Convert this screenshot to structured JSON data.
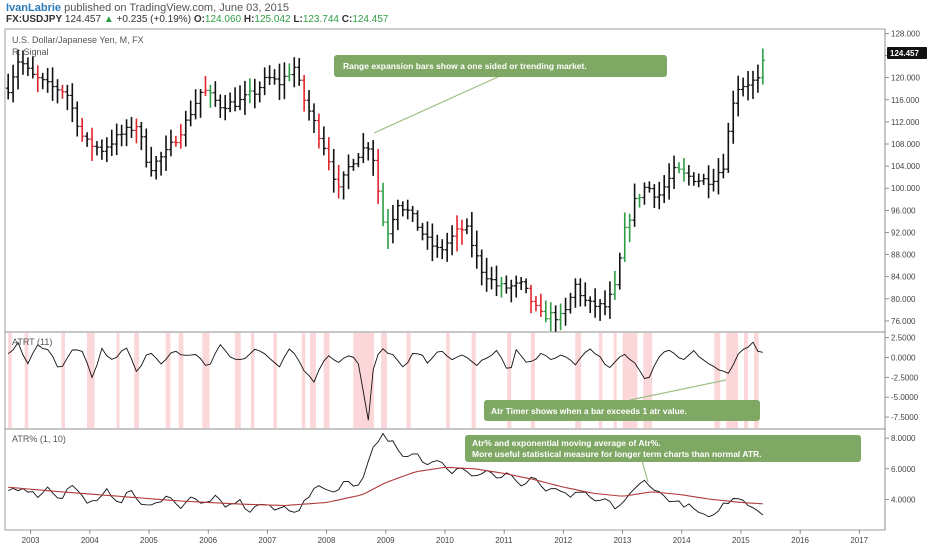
{
  "header": {
    "author": "IvanLabrie",
    "published_text": "published on TradingView.com, June 03, 2015",
    "symbol": "FX:USDJPY",
    "last": "124.457",
    "change": "+0.235 (+0.19%)",
    "open_label": "O:",
    "open": "124.060",
    "high_label": "H:",
    "high": "125.042",
    "low_label": "L:",
    "low": "123.744",
    "close_label": "C:",
    "close": "124.457"
  },
  "colors": {
    "up": "#2e9e45",
    "down": "#e0252a",
    "neutral": "#111111",
    "highlight": "#fbd7d9",
    "note_bg": "#7fa864",
    "ema": "#b03a3a"
  },
  "icons": {
    "change_arrow": "triangle-up-icon"
  },
  "chart_data": [
    {
      "type": "candlestick",
      "title": "U.S. Dollar/Japanese Yen, M, FX",
      "subtitle": "R: Signal",
      "ylim": [
        74.0,
        128.8
      ],
      "yticks": [
        "128.000",
        "124.000",
        "120.000",
        "116.000",
        "112.000",
        "108.000",
        "104.000",
        "100.000",
        "96.000",
        "92.000",
        "88.000",
        "84.000",
        "80.000",
        "76.000"
      ],
      "last_price_label": "124.457",
      "xlim": [
        2002.6,
        2017.4
      ],
      "xticks": [
        "2003",
        "2004",
        "2005",
        "2006",
        "2007",
        "2008",
        "2009",
        "2010",
        "2011",
        "2012",
        "2013",
        "2014",
        "2015",
        "2016",
        "2017"
      ],
      "annotation": "Range expansion bars show a one sided or trending market.",
      "anchors": [
        [
          2002.6,
          117.5
        ],
        [
          2002.8,
          123.5
        ],
        [
          2003.0,
          120.5
        ],
        [
          2003.3,
          118.5
        ],
        [
          2003.6,
          117.5
        ],
        [
          2003.9,
          108.5
        ],
        [
          2004.2,
          107.0
        ],
        [
          2004.5,
          109.5
        ],
        [
          2004.8,
          111.5
        ],
        [
          2005.0,
          103.5
        ],
        [
          2005.3,
          106.5
        ],
        [
          2005.6,
          111.5
        ],
        [
          2005.9,
          118.0
        ],
        [
          2006.2,
          115.0
        ],
        [
          2006.5,
          115.5
        ],
        [
          2006.8,
          117.5
        ],
        [
          2007.0,
          120.0
        ],
        [
          2007.2,
          119.0
        ],
        [
          2007.45,
          122.0
        ],
        [
          2007.6,
          116.5
        ],
        [
          2007.8,
          111.5
        ],
        [
          2008.0,
          106.5
        ],
        [
          2008.2,
          99.5
        ],
        [
          2008.4,
          104.5
        ],
        [
          2008.6,
          107.0
        ],
        [
          2008.75,
          108.0
        ],
        [
          2008.9,
          97.5
        ],
        [
          2009.0,
          91.0
        ],
        [
          2009.2,
          97.5
        ],
        [
          2009.4,
          95.5
        ],
        [
          2009.7,
          90.5
        ],
        [
          2009.9,
          88.5
        ],
        [
          2010.2,
          92.0
        ],
        [
          2010.35,
          93.0
        ],
        [
          2010.6,
          85.5
        ],
        [
          2010.85,
          82.5
        ],
        [
          2011.0,
          82.0
        ],
        [
          2011.3,
          82.5
        ],
        [
          2011.6,
          77.0
        ],
        [
          2011.8,
          77.0
        ],
        [
          2012.0,
          76.5
        ],
        [
          2012.2,
          82.5
        ],
        [
          2012.4,
          79.0
        ],
        [
          2012.7,
          78.5
        ],
        [
          2012.9,
          82.5
        ],
        [
          2013.0,
          91.0
        ],
        [
          2013.2,
          97.5
        ],
        [
          2013.4,
          100.5
        ],
        [
          2013.6,
          98.5
        ],
        [
          2013.9,
          103.5
        ],
        [
          2014.0,
          102.5
        ],
        [
          2014.3,
          101.5
        ],
        [
          2014.5,
          101.5
        ],
        [
          2014.7,
          104.0
        ],
        [
          2014.8,
          111.0
        ],
        [
          2014.9,
          118.0
        ],
        [
          2015.1,
          119.0
        ],
        [
          2015.3,
          119.5
        ],
        [
          2015.42,
          124.457
        ]
      ],
      "up_bars": [
        2006.05,
        2006.7,
        2007.4,
        2008.95,
        2009.05,
        2010.95,
        2011.7,
        2011.78,
        2011.92,
        2012.9,
        2013.05,
        2013.15,
        2013.3,
        2014.0,
        2015.35
      ],
      "down_bars": [
        2003.15,
        2003.55,
        2003.85,
        2004.05,
        2004.8,
        2005.5,
        2005.95,
        2007.65,
        2007.9,
        2008.05,
        2008.2,
        2008.85,
        2008.9,
        2010.25,
        2011.5,
        2011.6
      ]
    },
    {
      "type": "line",
      "title": "ATRT (11)",
      "ylim": [
        -9.0,
        3.2
      ],
      "yticks": [
        "2.5000",
        "0.0000",
        "-2.5000",
        "-5.0000",
        "-7.5000"
      ],
      "annotation": "Atr Timer shows when a bar exceeds 1 atr value.",
      "anchors": [
        [
          2002.6,
          0.2
        ],
        [
          2002.8,
          1.8
        ],
        [
          2002.95,
          -1.0
        ],
        [
          2003.1,
          1.5
        ],
        [
          2003.3,
          0.8
        ],
        [
          2003.5,
          -1.5
        ],
        [
          2003.7,
          1.2
        ],
        [
          2003.9,
          0.5
        ],
        [
          2004.05,
          -3.0
        ],
        [
          2004.2,
          1.0
        ],
        [
          2004.4,
          -0.5
        ],
        [
          2004.6,
          1.5
        ],
        [
          2004.8,
          -2.0
        ],
        [
          2005.0,
          1.0
        ],
        [
          2005.2,
          -1.0
        ],
        [
          2005.4,
          1.0
        ],
        [
          2005.6,
          0.0
        ],
        [
          2005.8,
          0.5
        ],
        [
          2006.0,
          -1.5
        ],
        [
          2006.2,
          1.8
        ],
        [
          2006.4,
          0.0
        ],
        [
          2006.6,
          -0.5
        ],
        [
          2006.8,
          1.2
        ],
        [
          2007.0,
          0.3
        ],
        [
          2007.2,
          -1.0
        ],
        [
          2007.4,
          1.5
        ],
        [
          2007.6,
          -1.5
        ],
        [
          2007.8,
          -3.0
        ],
        [
          2008.0,
          0.5
        ],
        [
          2008.2,
          -0.5
        ],
        [
          2008.4,
          0.5
        ],
        [
          2008.55,
          -1.0
        ],
        [
          2008.7,
          -8.3
        ],
        [
          2008.8,
          -0.5
        ],
        [
          2008.95,
          1.0
        ],
        [
          2009.1,
          0.5
        ],
        [
          2009.3,
          -1.5
        ],
        [
          2009.5,
          0.8
        ],
        [
          2009.7,
          -0.5
        ],
        [
          2009.9,
          1.0
        ],
        [
          2010.1,
          -0.5
        ],
        [
          2010.3,
          0.5
        ],
        [
          2010.5,
          -1.0
        ],
        [
          2010.7,
          -0.2
        ],
        [
          2010.9,
          0.8
        ],
        [
          2011.1,
          -2.0
        ],
        [
          2011.2,
          1.0
        ],
        [
          2011.4,
          -1.0
        ],
        [
          2011.6,
          0.5
        ],
        [
          2011.8,
          -0.5
        ],
        [
          2012.0,
          0.5
        ],
        [
          2012.2,
          -1.0
        ],
        [
          2012.4,
          1.2
        ],
        [
          2012.6,
          0.0
        ],
        [
          2012.8,
          -1.5
        ],
        [
          2013.0,
          0.5
        ],
        [
          2013.2,
          -0.5
        ],
        [
          2013.4,
          -3.0
        ],
        [
          2013.6,
          -0.2
        ],
        [
          2013.8,
          1.2
        ],
        [
          2014.0,
          -0.5
        ],
        [
          2014.2,
          1.0
        ],
        [
          2014.4,
          -0.5
        ],
        [
          2014.6,
          -1.5
        ],
        [
          2014.8,
          -2.0
        ],
        [
          2014.95,
          0.2
        ],
        [
          2015.1,
          1.2
        ],
        [
          2015.25,
          2.0
        ],
        [
          2015.33,
          -1.2
        ],
        [
          2015.42,
          2.8
        ]
      ],
      "highlight_ranges": [
        [
          2002.62,
          2002.68
        ],
        [
          2002.9,
          2002.96
        ],
        [
          2003.52,
          2003.58
        ],
        [
          2003.95,
          2004.08
        ],
        [
          2004.45,
          2004.5
        ],
        [
          2004.75,
          2004.83
        ],
        [
          2005.28,
          2005.36
        ],
        [
          2005.5,
          2005.58
        ],
        [
          2005.9,
          2006.02
        ],
        [
          2006.45,
          2006.55
        ],
        [
          2006.72,
          2006.78
        ],
        [
          2007.1,
          2007.16
        ],
        [
          2007.58,
          2007.64
        ],
        [
          2007.72,
          2007.82
        ],
        [
          2007.95,
          2008.05
        ],
        [
          2008.45,
          2008.8
        ],
        [
          2008.92,
          2009.02
        ],
        [
          2009.35,
          2009.42
        ],
        [
          2010.02,
          2010.08
        ],
        [
          2010.45,
          2010.52
        ],
        [
          2011.05,
          2011.12
        ],
        [
          2011.45,
          2011.52
        ],
        [
          2012.2,
          2012.3
        ],
        [
          2012.6,
          2012.66
        ],
        [
          2012.85,
          2012.9
        ],
        [
          2013.0,
          2013.25
        ],
        [
          2013.35,
          2013.5
        ],
        [
          2014.55,
          2014.65
        ],
        [
          2014.75,
          2014.95
        ],
        [
          2015.05,
          2015.12
        ],
        [
          2015.22,
          2015.3
        ]
      ]
    },
    {
      "type": "line",
      "title": "ATR% (1, 10)",
      "ylim": [
        2.0,
        8.6
      ],
      "yticks": [
        "8.0000",
        "6.0000",
        "4.0000"
      ],
      "annotation": "Atr% and exponential moving average of Atr%.\nMore useful statistical measure for longer term charts than normal ATR.",
      "series": [
        {
          "name": "ATR%",
          "anchors": [
            [
              2002.6,
              4.6
            ],
            [
              2002.9,
              4.8
            ],
            [
              2003.1,
              4.2
            ],
            [
              2003.3,
              4.8
            ],
            [
              2003.5,
              4.0
            ],
            [
              2003.7,
              5.0
            ],
            [
              2003.9,
              4.0
            ],
            [
              2004.1,
              3.7
            ],
            [
              2004.3,
              4.6
            ],
            [
              2004.5,
              3.8
            ],
            [
              2004.7,
              4.6
            ],
            [
              2004.9,
              3.5
            ],
            [
              2005.1,
              3.6
            ],
            [
              2005.3,
              4.4
            ],
            [
              2005.5,
              3.4
            ],
            [
              2005.7,
              4.2
            ],
            [
              2005.9,
              3.6
            ],
            [
              2006.1,
              4.2
            ],
            [
              2006.3,
              3.4
            ],
            [
              2006.5,
              4.0
            ],
            [
              2006.7,
              3.2
            ],
            [
              2006.9,
              3.8
            ],
            [
              2007.1,
              3.3
            ],
            [
              2007.3,
              3.5
            ],
            [
              2007.5,
              3.2
            ],
            [
              2007.7,
              4.2
            ],
            [
              2007.9,
              5.0
            ],
            [
              2008.1,
              4.4
            ],
            [
              2008.3,
              5.2
            ],
            [
              2008.5,
              4.8
            ],
            [
              2008.65,
              5.8
            ],
            [
              2008.8,
              7.6
            ],
            [
              2008.95,
              8.2
            ],
            [
              2009.1,
              7.8
            ],
            [
              2009.3,
              6.6
            ],
            [
              2009.5,
              7.0
            ],
            [
              2009.7,
              6.2
            ],
            [
              2009.9,
              6.8
            ],
            [
              2010.1,
              5.8
            ],
            [
              2010.3,
              6.2
            ],
            [
              2010.5,
              5.4
            ],
            [
              2010.7,
              6.0
            ],
            [
              2010.9,
              5.2
            ],
            [
              2011.1,
              5.8
            ],
            [
              2011.3,
              4.8
            ],
            [
              2011.5,
              5.6
            ],
            [
              2011.7,
              4.4
            ],
            [
              2011.9,
              4.8
            ],
            [
              2012.1,
              4.0
            ],
            [
              2012.3,
              4.6
            ],
            [
              2012.5,
              3.8
            ],
            [
              2012.7,
              4.0
            ],
            [
              2012.9,
              3.4
            ],
            [
              2013.1,
              4.2
            ],
            [
              2013.3,
              5.0
            ],
            [
              2013.4,
              5.3
            ],
            [
              2013.55,
              4.6
            ],
            [
              2013.7,
              4.2
            ],
            [
              2013.9,
              3.8
            ],
            [
              2014.1,
              3.6
            ],
            [
              2014.3,
              3.1
            ],
            [
              2014.5,
              2.6
            ],
            [
              2014.65,
              3.6
            ],
            [
              2014.8,
              3.8
            ],
            [
              2014.95,
              4.2
            ],
            [
              2015.1,
              3.8
            ],
            [
              2015.25,
              3.4
            ],
            [
              2015.42,
              2.9
            ]
          ]
        },
        {
          "name": "EMA",
          "anchors": [
            [
              2002.6,
              4.8
            ],
            [
              2003.5,
              4.5
            ],
            [
              2004.5,
              4.2
            ],
            [
              2005.5,
              3.9
            ],
            [
              2006.5,
              3.7
            ],
            [
              2007.3,
              3.6
            ],
            [
              2008.0,
              3.8
            ],
            [
              2008.6,
              4.3
            ],
            [
              2009.0,
              5.1
            ],
            [
              2009.5,
              5.8
            ],
            [
              2010.0,
              6.1
            ],
            [
              2010.5,
              6.0
            ],
            [
              2011.0,
              5.7
            ],
            [
              2011.5,
              5.3
            ],
            [
              2012.0,
              4.8
            ],
            [
              2012.5,
              4.4
            ],
            [
              2013.0,
              4.2
            ],
            [
              2013.5,
              4.5
            ],
            [
              2014.0,
              4.3
            ],
            [
              2014.5,
              4.0
            ],
            [
              2015.0,
              3.8
            ],
            [
              2015.42,
              3.7
            ]
          ]
        }
      ]
    }
  ]
}
